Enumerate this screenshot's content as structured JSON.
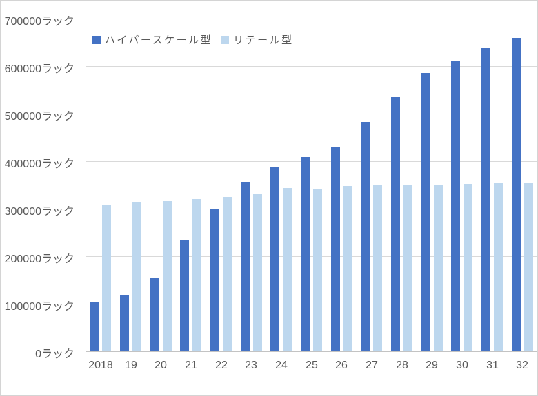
{
  "chart_data": {
    "type": "bar",
    "title": "",
    "y_unit": "ラック",
    "ylim": [
      0,
      700000
    ],
    "y_tick_step": 100000,
    "grid": true,
    "legend_position": "top-left-inside",
    "categories": [
      "2018",
      "19",
      "20",
      "21",
      "22",
      "23",
      "24",
      "25",
      "26",
      "27",
      "28",
      "29",
      "30",
      "31",
      "32"
    ],
    "series": [
      {
        "key": "hyperscale",
        "name": "ハイパースケール型",
        "color": "#4472C4",
        "values": [
          105000,
          119000,
          154000,
          234000,
          300000,
          357000,
          388000,
          408000,
          429000,
          483000,
          535000,
          585000,
          612000,
          638000,
          660000
        ]
      },
      {
        "key": "retail",
        "name": "リテール型",
        "color": "#BDD7EE",
        "values": [
          307000,
          313000,
          316000,
          320000,
          324000,
          332000,
          343000,
          341000,
          348000,
          350000,
          349000,
          350000,
          352000,
          353000,
          353000
        ]
      }
    ]
  },
  "colors": {
    "background": "#ffffff",
    "frame_border": "#d4d4d4",
    "gridline": "#d9d9d9",
    "axis_line": "#c3c3c3",
    "tick_text": "#595959"
  }
}
